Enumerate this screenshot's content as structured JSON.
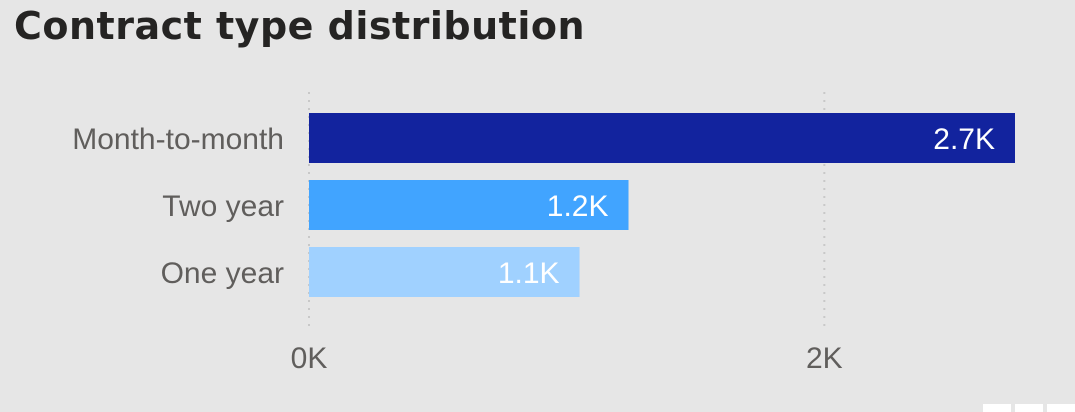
{
  "chart_data": {
    "type": "bar",
    "orientation": "horizontal",
    "title": "Contract type distribution",
    "categories": [
      "Month-to-month",
      "Two year",
      "One year"
    ],
    "values": [
      2740,
      1240,
      1050
    ],
    "data_labels": [
      "2.7K",
      "1.2K",
      "1.1K"
    ],
    "colors": [
      "#12239e",
      "#41a4ff",
      "#a0d1ff"
    ],
    "xlim": [
      0,
      2740
    ],
    "x_ticks": [
      0,
      2000
    ],
    "x_tick_labels": [
      "0K",
      "2K"
    ],
    "grid": true,
    "legend": "none",
    "xlabel": "",
    "ylabel": ""
  },
  "theme": {
    "background": "#e6e6e6",
    "gridline": "#c8c8c8"
  }
}
